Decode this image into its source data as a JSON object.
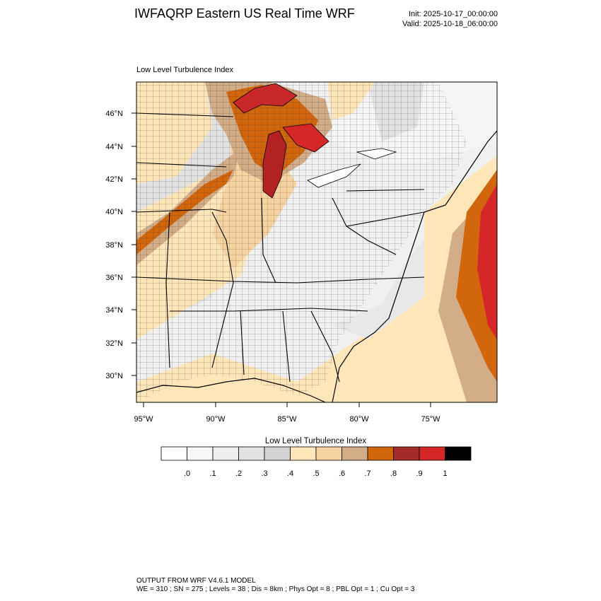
{
  "header": {
    "title": "IWFAQRP Eastern US Real Time WRF",
    "init": "Init: 2025-10-17_00:00:00",
    "valid": "Valid: 2025-10-18_06:00:00"
  },
  "plot": {
    "label": "Low Level Turbulence Index",
    "lat_labels": [
      "46°N",
      "44°N",
      "42°N",
      "40°N",
      "38°N",
      "36°N",
      "34°N",
      "32°N",
      "30°N"
    ],
    "lon_labels": [
      "95°W",
      "90°W",
      "85°W",
      "80°W",
      "75°W"
    ]
  },
  "colorbar": {
    "title": "Low Level Turbulence Index",
    "colors": [
      "#ffffff",
      "#f7f7f7",
      "#efefef",
      "#e2e2e2",
      "#d3d3d3",
      "#ffe6b8",
      "#f8d3a2",
      "#d2ad87",
      "#d2660c",
      "#a52a2a",
      "#d62728",
      "#000000"
    ],
    "tick_labels": [
      ".0",
      ".1",
      ".2",
      ".3",
      ".4",
      ".5",
      ".6",
      ".7",
      ".8",
      ".9",
      "1"
    ]
  },
  "footer": {
    "line1": "OUTPUT FROM WRF V4.6.1 MODEL",
    "line2": "WE = 310 ; SN = 275 ; Levels = 38 ; Dis = 8km ; Phys Opt = 8 ; PBL Opt = 1 ; Cu Opt = 3"
  },
  "colors": {
    "water": "#ffffff",
    "land_low": "#efefef",
    "ocean_shelf": "#ffe6b8",
    "ocean_mid": "#d2ad87",
    "ocean_high": "#d2660c",
    "ocean_max": "#d62728"
  }
}
